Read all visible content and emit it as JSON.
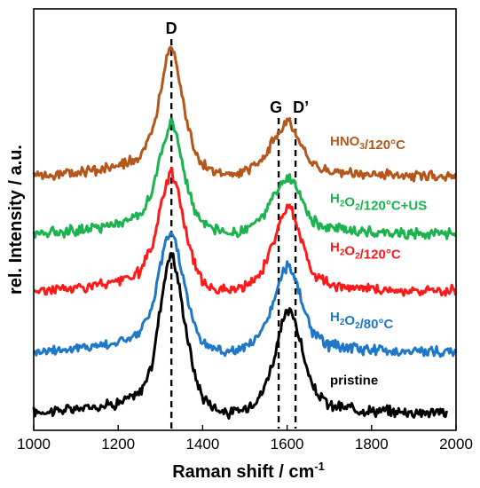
{
  "chart_data": {
    "type": "line",
    "xlabel": "Raman shift / cm",
    "xlabel_sup": "-1",
    "ylabel": "rel. Intensity / a.u.",
    "xlim": [
      1000,
      2000
    ],
    "xticks": [
      1000,
      1200,
      1400,
      1600,
      1800,
      2000
    ],
    "y_ticks_labeled": false,
    "grid": false,
    "annotations": [
      {
        "text": "D",
        "x": 1326
      },
      {
        "text": "G",
        "x": 1580
      },
      {
        "text": "D’",
        "x": 1620
      }
    ],
    "series": [
      {
        "name": "pristine",
        "label_parts": [
          {
            "t": "pristine",
            "sub": false
          }
        ],
        "color": "#000000",
        "baseline": 0.03,
        "x": [
          1000,
          1100,
          1200,
          1250,
          1280,
          1300,
          1315,
          1326,
          1340,
          1360,
          1380,
          1400,
          1430,
          1460,
          1500,
          1540,
          1570,
          1590,
          1600,
          1610,
          1620,
          1640,
          1660,
          1700,
          1800,
          1900,
          1980
        ],
        "values": [
          0.0,
          0.01,
          0.03,
          0.06,
          0.15,
          0.35,
          0.48,
          0.53,
          0.45,
          0.28,
          0.13,
          0.05,
          0.015,
          -0.005,
          0.01,
          0.06,
          0.18,
          0.3,
          0.33,
          0.33,
          0.3,
          0.18,
          0.08,
          0.02,
          0.005,
          0.0,
          0.0
        ]
      },
      {
        "name": "H2O2/80°C",
        "label_parts": [
          {
            "t": "H",
            "sub": false
          },
          {
            "t": "2",
            "sub": true
          },
          {
            "t": "O",
            "sub": false
          },
          {
            "t": "2",
            "sub": true
          },
          {
            "t": "/80°C",
            "sub": false
          }
        ],
        "color": "#1f77c8",
        "baseline": 0.23,
        "x": [
          1000,
          1100,
          1200,
          1250,
          1280,
          1300,
          1315,
          1326,
          1340,
          1360,
          1380,
          1400,
          1430,
          1460,
          1500,
          1540,
          1570,
          1590,
          1600,
          1610,
          1620,
          1640,
          1660,
          1700,
          1800,
          1900,
          2000
        ],
        "values": [
          0.0,
          0.01,
          0.03,
          0.06,
          0.14,
          0.28,
          0.37,
          0.4,
          0.34,
          0.2,
          0.09,
          0.03,
          0.01,
          0.0,
          0.01,
          0.06,
          0.17,
          0.26,
          0.28,
          0.27,
          0.24,
          0.14,
          0.06,
          0.02,
          0.005,
          0.0,
          0.0
        ]
      },
      {
        "name": "H2O2/120°C",
        "label_parts": [
          {
            "t": "H",
            "sub": false
          },
          {
            "t": "2",
            "sub": true
          },
          {
            "t": "O",
            "sub": false
          },
          {
            "t": "2",
            "sub": true
          },
          {
            "t": "/120°C",
            "sub": false
          }
        ],
        "color": "#ff1a1a",
        "baseline": 0.43,
        "x": [
          1000,
          1100,
          1200,
          1250,
          1280,
          1300,
          1315,
          1326,
          1340,
          1360,
          1380,
          1400,
          1430,
          1460,
          1500,
          1540,
          1570,
          1590,
          1600,
          1610,
          1620,
          1640,
          1660,
          1700,
          1800,
          1900,
          2000
        ],
        "values": [
          0.0,
          0.01,
          0.03,
          0.06,
          0.14,
          0.27,
          0.36,
          0.4,
          0.34,
          0.2,
          0.09,
          0.03,
          0.01,
          0.0,
          0.01,
          0.06,
          0.17,
          0.25,
          0.27,
          0.27,
          0.24,
          0.14,
          0.06,
          0.02,
          0.005,
          0.0,
          0.0
        ]
      },
      {
        "name": "H2O2/120°C+US",
        "label_parts": [
          {
            "t": "H",
            "sub": false
          },
          {
            "t": "2",
            "sub": true
          },
          {
            "t": "O",
            "sub": false
          },
          {
            "t": "2",
            "sub": true
          },
          {
            "t": "/120°C+US",
            "sub": false
          }
        ],
        "color": "#1ab34d",
        "baseline": 0.62,
        "x": [
          1000,
          1100,
          1200,
          1250,
          1280,
          1300,
          1315,
          1326,
          1340,
          1360,
          1380,
          1400,
          1430,
          1460,
          1500,
          1540,
          1570,
          1590,
          1600,
          1610,
          1620,
          1640,
          1660,
          1700,
          1800,
          1900,
          2000
        ],
        "values": [
          0.0,
          0.01,
          0.03,
          0.06,
          0.13,
          0.25,
          0.33,
          0.37,
          0.31,
          0.18,
          0.08,
          0.03,
          0.01,
          0.0,
          0.01,
          0.05,
          0.12,
          0.17,
          0.18,
          0.18,
          0.16,
          0.09,
          0.04,
          0.015,
          0.005,
          0.0,
          0.0
        ]
      },
      {
        "name": "HNO3/120°C",
        "label_parts": [
          {
            "t": "HNO",
            "sub": false
          },
          {
            "t": "3",
            "sub": true
          },
          {
            "t": "/120°C",
            "sub": false
          }
        ],
        "color": "#b5561a",
        "baseline": 0.81,
        "x": [
          1000,
          1100,
          1200,
          1250,
          1280,
          1300,
          1315,
          1326,
          1340,
          1360,
          1380,
          1400,
          1430,
          1460,
          1500,
          1540,
          1570,
          1590,
          1600,
          1610,
          1620,
          1640,
          1660,
          1700,
          1800,
          1900,
          2000
        ],
        "values": [
          0.0,
          0.01,
          0.03,
          0.06,
          0.13,
          0.27,
          0.4,
          0.44,
          0.36,
          0.2,
          0.09,
          0.035,
          0.01,
          0.0,
          0.01,
          0.05,
          0.12,
          0.17,
          0.18,
          0.17,
          0.15,
          0.08,
          0.035,
          0.012,
          0.004,
          0.0,
          0.0
        ]
      }
    ]
  }
}
